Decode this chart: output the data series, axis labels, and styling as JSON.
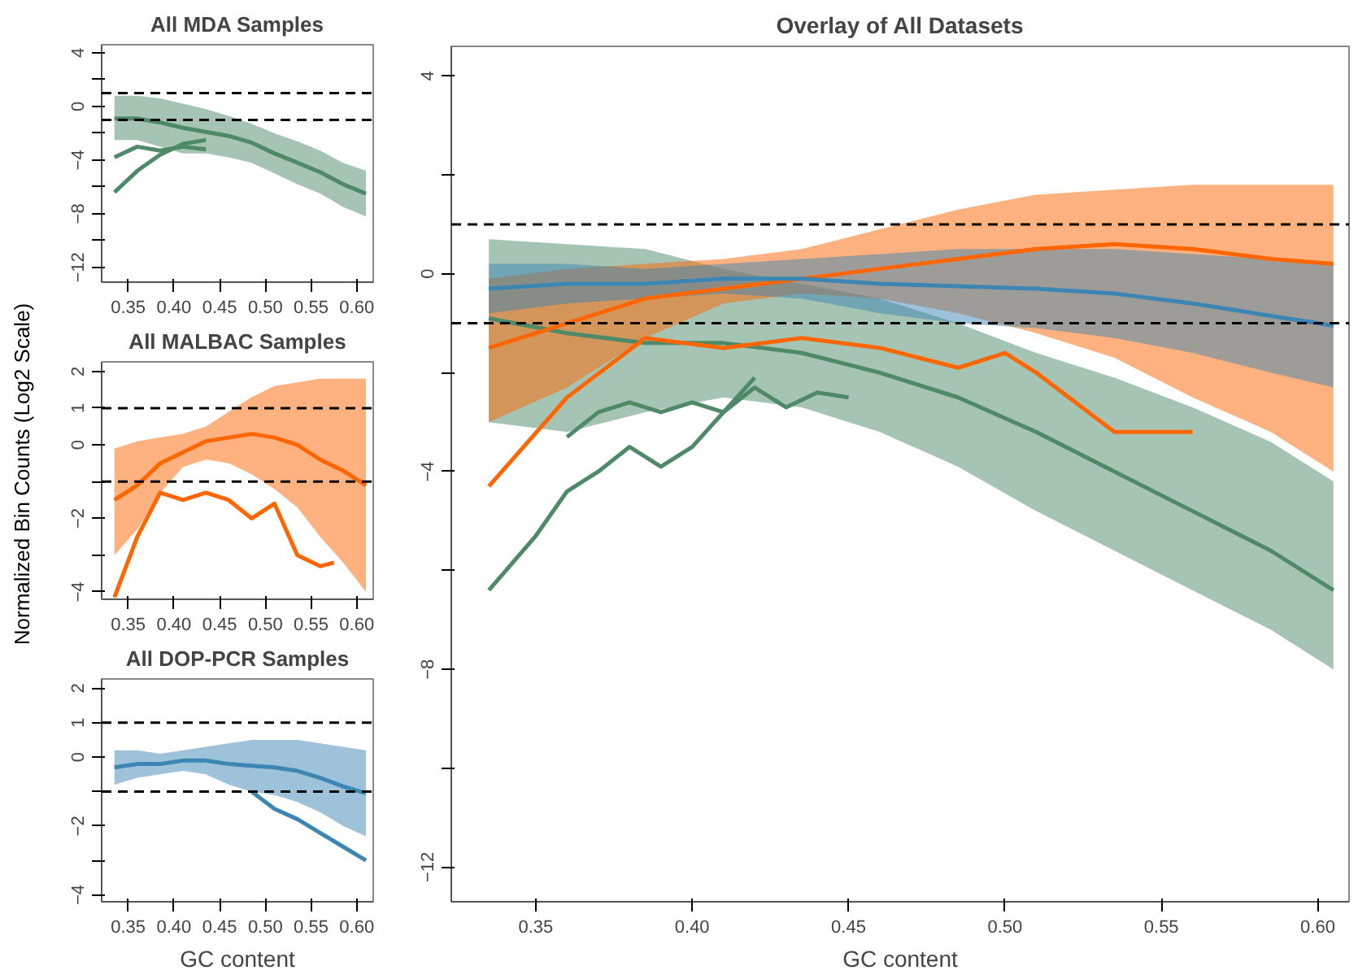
{
  "chart_data": [
    {
      "type": "line",
      "title": "All MDA Samples",
      "xlim": [
        0.321,
        0.618
      ],
      "ylim": [
        -13.1,
        4.6
      ],
      "xticks": [
        {
          "value": 0.35,
          "label": "0.35"
        },
        {
          "value": 0.4,
          "label": "0.40"
        },
        {
          "value": 0.45,
          "label": "0.45"
        },
        {
          "value": 0.5,
          "label": "0.50"
        },
        {
          "value": 0.55,
          "label": "0.55"
        },
        {
          "value": 0.6,
          "label": "0.60"
        }
      ],
      "yticks": [
        {
          "value": -12,
          "label": "−12"
        },
        {
          "value": -10,
          "label": null
        },
        {
          "value": -8,
          "label": "−8"
        },
        {
          "value": -6,
          "label": null
        },
        {
          "value": -4,
          "label": "−4"
        },
        {
          "value": -2,
          "label": null
        },
        {
          "value": 0,
          "label": "0"
        },
        {
          "value": 2,
          "label": null
        },
        {
          "value": 4,
          "label": "4"
        }
      ],
      "ref_lines": [
        {
          "axis": "y",
          "value": 1,
          "line_style": "dashed",
          "color": "#000000"
        },
        {
          "axis": "y",
          "value": -1,
          "line_style": "dashed",
          "color": "#000000"
        }
      ],
      "x": [
        0.335,
        0.36,
        0.385,
        0.41,
        0.435,
        0.46,
        0.485,
        0.51,
        0.535,
        0.56,
        0.585,
        0.61
      ],
      "series": [
        {
          "color": "#4e8a68",
          "values": [
            -0.9,
            -0.9,
            -1.2,
            -1.6,
            -1.9,
            -2.2,
            -2.7,
            -3.5,
            -4.2,
            -4.9,
            -5.8,
            -6.5
          ],
          "lower": [
            -2.5,
            -2.5,
            -3.0,
            -3.5,
            -3.5,
            -3.8,
            -4.2,
            -5.0,
            -5.8,
            -6.5,
            -7.5,
            -8.2
          ],
          "upper": [
            0.8,
            0.8,
            0.6,
            0.2,
            -0.2,
            -0.7,
            -1.3,
            -2.0,
            -2.6,
            -3.3,
            -4.2,
            -4.8
          ]
        },
        {
          "color": "#4e8a68",
          "x": [
            0.335,
            0.36,
            0.385,
            0.41,
            0.435
          ],
          "values": [
            -6.4,
            -4.8,
            -3.6,
            -2.8,
            -2.5
          ]
        },
        {
          "color": "#4e8a68",
          "x": [
            0.335,
            0.36,
            0.385,
            0.41,
            0.435
          ],
          "values": [
            -3.8,
            -3.0,
            -3.3,
            -3.0,
            -3.2
          ]
        }
      ]
    },
    {
      "type": "line",
      "title": "All MALBAC Samples",
      "ylabel": "Normalized Bin Counts (Log2 Scale)",
      "xlim": [
        0.321,
        0.618
      ],
      "ylim": [
        -4.2,
        2.26
      ],
      "xticks": [
        {
          "value": 0.35,
          "label": "0.35"
        },
        {
          "value": 0.4,
          "label": "0.40"
        },
        {
          "value": 0.45,
          "label": "0.45"
        },
        {
          "value": 0.5,
          "label": "0.50"
        },
        {
          "value": 0.55,
          "label": "0.55"
        },
        {
          "value": 0.6,
          "label": "0.60"
        }
      ],
      "yticks": [
        {
          "value": -4,
          "label": "−4"
        },
        {
          "value": -3,
          "label": null
        },
        {
          "value": -2,
          "label": "−2"
        },
        {
          "value": -1,
          "label": null
        },
        {
          "value": 0,
          "label": "0"
        },
        {
          "value": 1,
          "label": "1"
        },
        {
          "value": 2,
          "label": "2"
        }
      ],
      "ref_lines": [
        {
          "axis": "y",
          "value": 1,
          "line_style": "dashed",
          "color": "#000000"
        },
        {
          "axis": "y",
          "value": -1,
          "line_style": "dashed",
          "color": "#000000"
        }
      ],
      "x": [
        0.335,
        0.36,
        0.385,
        0.41,
        0.435,
        0.46,
        0.485,
        0.51,
        0.535,
        0.56,
        0.585,
        0.61
      ],
      "series": [
        {
          "color": "#ff6600",
          "values": [
            -1.5,
            -1.1,
            -0.5,
            -0.2,
            0.1,
            0.2,
            0.3,
            0.2,
            0.0,
            -0.4,
            -0.7,
            -1.1
          ],
          "lower": [
            -3.0,
            -2.3,
            -1.3,
            -0.6,
            -0.4,
            -0.5,
            -0.8,
            -1.2,
            -1.7,
            -2.5,
            -3.2,
            -4.0
          ],
          "upper": [
            -0.1,
            0.1,
            0.2,
            0.3,
            0.5,
            0.9,
            1.3,
            1.6,
            1.7,
            1.8,
            1.8,
            1.8
          ]
        },
        {
          "color": "#ff6600",
          "x": [
            0.335,
            0.36,
            0.385,
            0.41,
            0.435,
            0.46,
            0.485,
            0.51,
            0.535,
            0.56,
            0.575
          ],
          "values": [
            -4.15,
            -2.5,
            -1.3,
            -1.5,
            -1.3,
            -1.5,
            -2.0,
            -1.6,
            -3.0,
            -3.3,
            -3.2
          ]
        }
      ]
    },
    {
      "type": "line",
      "title": "All DOP-PCR Samples",
      "xlabel": "GC content",
      "xlim": [
        0.321,
        0.618
      ],
      "ylim": [
        -4.2,
        2.27
      ],
      "xticks": [
        {
          "value": 0.35,
          "label": "0.35"
        },
        {
          "value": 0.4,
          "label": "0.40"
        },
        {
          "value": 0.45,
          "label": "0.45"
        },
        {
          "value": 0.5,
          "label": "0.50"
        },
        {
          "value": 0.55,
          "label": "0.55"
        },
        {
          "value": 0.6,
          "label": "0.60"
        }
      ],
      "yticks": [
        {
          "value": -4,
          "label": "−4"
        },
        {
          "value": -3,
          "label": null
        },
        {
          "value": -2,
          "label": "−2"
        },
        {
          "value": -1,
          "label": null
        },
        {
          "value": 0,
          "label": "0"
        },
        {
          "value": 1,
          "label": "1"
        },
        {
          "value": 2,
          "label": "2"
        }
      ],
      "ref_lines": [
        {
          "axis": "y",
          "value": 1,
          "line_style": "dashed",
          "color": "#000000"
        },
        {
          "axis": "y",
          "value": -1,
          "line_style": "dashed",
          "color": "#000000"
        }
      ],
      "x": [
        0.335,
        0.36,
        0.385,
        0.41,
        0.435,
        0.46,
        0.485,
        0.51,
        0.535,
        0.56,
        0.585,
        0.61
      ],
      "series": [
        {
          "color": "#3b86b3",
          "values": [
            -0.3,
            -0.2,
            -0.2,
            -0.1,
            -0.1,
            -0.2,
            -0.25,
            -0.3,
            -0.4,
            -0.6,
            -0.85,
            -1.05
          ],
          "lower": [
            -0.8,
            -0.6,
            -0.5,
            -0.4,
            -0.5,
            -0.8,
            -1.0,
            -1.1,
            -1.3,
            -1.6,
            -2.0,
            -2.3
          ],
          "upper": [
            0.2,
            0.2,
            0.1,
            0.2,
            0.3,
            0.4,
            0.5,
            0.5,
            0.5,
            0.4,
            0.3,
            0.2
          ]
        },
        {
          "color": "#3b86b3",
          "x": [
            0.485,
            0.51,
            0.535,
            0.56,
            0.585,
            0.61
          ],
          "values": [
            -1.0,
            -1.5,
            -1.8,
            -2.2,
            -2.6,
            -3.0
          ]
        }
      ]
    },
    {
      "type": "line",
      "title": "Overlay of All Datasets",
      "xlabel": "GC content",
      "xlim": [
        0.323,
        0.61
      ],
      "ylim": [
        -12.7,
        4.6
      ],
      "xticks": [
        {
          "value": 0.35,
          "label": "0.35"
        },
        {
          "value": 0.4,
          "label": "0.40"
        },
        {
          "value": 0.45,
          "label": "0.45"
        },
        {
          "value": 0.5,
          "label": "0.50"
        },
        {
          "value": 0.55,
          "label": "0.55"
        },
        {
          "value": 0.6,
          "label": "0.60"
        }
      ],
      "yticks": [
        {
          "value": -12,
          "label": "−12"
        },
        {
          "value": -10,
          "label": null
        },
        {
          "value": -8,
          "label": "−8"
        },
        {
          "value": -6,
          "label": null
        },
        {
          "value": -4,
          "label": "−4"
        },
        {
          "value": -2,
          "label": null
        },
        {
          "value": 0,
          "label": "0"
        },
        {
          "value": 2,
          "label": null
        },
        {
          "value": 4,
          "label": "4"
        }
      ],
      "ref_lines": [
        {
          "axis": "y",
          "value": 1,
          "line_style": "dashed",
          "color": "#000000"
        },
        {
          "axis": "y",
          "value": -1,
          "line_style": "dashed",
          "color": "#000000"
        }
      ],
      "x": [
        0.335,
        0.36,
        0.385,
        0.41,
        0.435,
        0.46,
        0.485,
        0.51,
        0.535,
        0.56,
        0.585,
        0.605
      ],
      "series": [
        {
          "color": "#4e8a68",
          "values": [
            -0.9,
            -1.2,
            -1.4,
            -1.4,
            -1.6,
            -2.0,
            -2.5,
            -3.2,
            -4.0,
            -4.8,
            -5.6,
            -6.4
          ],
          "lower": [
            -3.0,
            -3.2,
            -2.8,
            -2.5,
            -2.7,
            -3.2,
            -3.9,
            -4.8,
            -5.6,
            -6.4,
            -7.2,
            -8.0
          ],
          "upper": [
            0.7,
            0.6,
            0.5,
            0.1,
            -0.2,
            -0.5,
            -1.0,
            -1.6,
            -2.1,
            -2.7,
            -3.4,
            -4.2
          ]
        },
        {
          "color": "#4e8a68",
          "x": [
            0.335,
            0.35,
            0.36,
            0.37,
            0.38,
            0.39,
            0.4,
            0.41,
            0.42
          ],
          "values": [
            -6.4,
            -5.3,
            -4.4,
            -4.0,
            -3.5,
            -3.9,
            -3.5,
            -2.8,
            -2.1
          ]
        },
        {
          "color": "#4e8a68",
          "x": [
            0.36,
            0.37,
            0.38,
            0.39,
            0.4,
            0.41,
            0.42,
            0.43,
            0.44,
            0.45
          ],
          "values": [
            -3.3,
            -2.8,
            -2.6,
            -2.8,
            -2.6,
            -2.8,
            -2.3,
            -2.7,
            -2.4,
            -2.5
          ]
        },
        {
          "color": "#ff6600",
          "values": [
            -1.5,
            -1.0,
            -0.5,
            -0.3,
            -0.1,
            0.1,
            0.3,
            0.5,
            0.6,
            0.5,
            0.3,
            0.2
          ],
          "lower": [
            -3.0,
            -2.3,
            -1.3,
            -0.6,
            -0.4,
            -0.5,
            -0.8,
            -1.2,
            -1.7,
            -2.5,
            -3.2,
            -4.0
          ],
          "upper": [
            -0.1,
            0.1,
            0.2,
            0.3,
            0.5,
            0.9,
            1.3,
            1.6,
            1.7,
            1.8,
            1.8,
            1.8
          ]
        },
        {
          "color": "#ff6600",
          "x": [
            0.335,
            0.36,
            0.385,
            0.41,
            0.435,
            0.46,
            0.485,
            0.5,
            0.51,
            0.535,
            0.56
          ],
          "values": [
            -4.3,
            -2.5,
            -1.3,
            -1.5,
            -1.3,
            -1.5,
            -1.9,
            -1.6,
            -2.0,
            -3.2,
            -3.2
          ]
        },
        {
          "color": "#3b86b3",
          "values": [
            -0.3,
            -0.2,
            -0.2,
            -0.1,
            -0.1,
            -0.2,
            -0.25,
            -0.3,
            -0.4,
            -0.6,
            -0.85,
            -1.05
          ],
          "lower": [
            -0.8,
            -0.6,
            -0.5,
            -0.4,
            -0.5,
            -0.8,
            -1.0,
            -1.1,
            -1.3,
            -1.6,
            -2.0,
            -2.3
          ],
          "upper": [
            0.2,
            0.2,
            0.1,
            0.2,
            0.3,
            0.4,
            0.5,
            0.5,
            0.5,
            0.4,
            0.3,
            0.2
          ]
        }
      ]
    }
  ]
}
